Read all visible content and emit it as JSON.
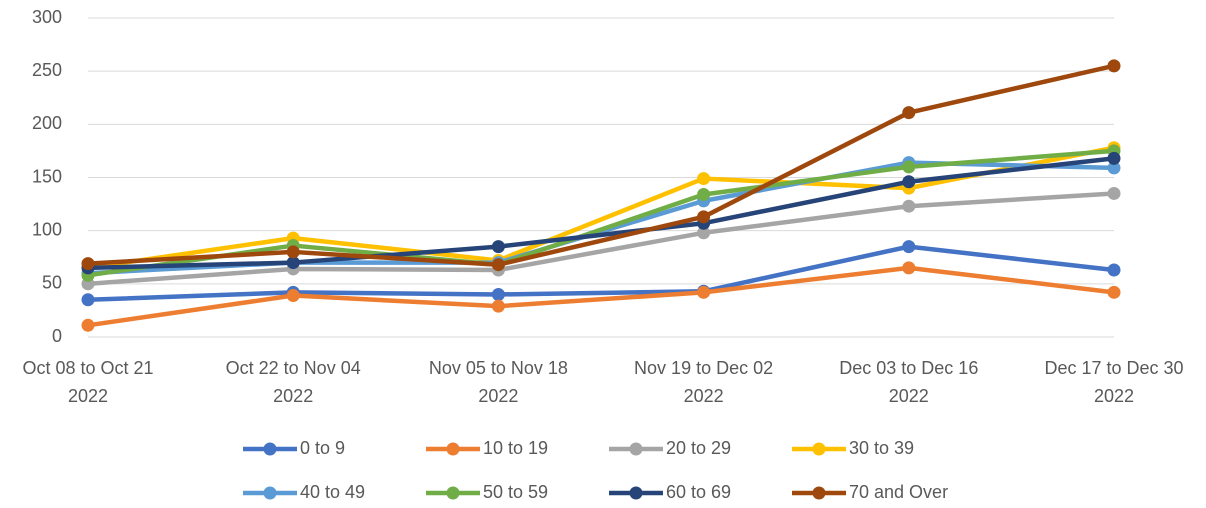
{
  "chart_data": {
    "type": "line",
    "categories": [
      "Oct 08 to Oct 21\n2022",
      "Oct 22 to Nov 04\n2022",
      "Nov 05 to Nov 18\n2022",
      "Nov 19 to Dec 02\n2022",
      "Dec 03 to Dec 16\n2022",
      "Dec 17 to Dec 30\n2022"
    ],
    "series": [
      {
        "name": "0 to 9",
        "color": "#4472c4",
        "values": [
          35,
          42,
          40,
          43,
          85,
          63
        ]
      },
      {
        "name": "10 to 19",
        "color": "#ed7d31",
        "values": [
          11,
          39,
          29,
          42,
          65,
          42
        ]
      },
      {
        "name": "20 to 29",
        "color": "#a5a5a5",
        "values": [
          50,
          64,
          63,
          98,
          123,
          135
        ]
      },
      {
        "name": "30 to 39",
        "color": "#ffc000",
        "values": [
          65,
          93,
          72,
          149,
          140,
          178
        ]
      },
      {
        "name": "40 to 49",
        "color": "#5b9bd5",
        "values": [
          60,
          70,
          70,
          128,
          164,
          159
        ]
      },
      {
        "name": "50 to 59",
        "color": "#70ad47",
        "values": [
          58,
          86,
          68,
          134,
          160,
          175
        ]
      },
      {
        "name": "60 to 69",
        "color": "#264478",
        "values": [
          65,
          70,
          85,
          107,
          146,
          168
        ]
      },
      {
        "name": "70 and Over",
        "color": "#9e480e",
        "values": [
          69,
          80,
          68,
          113,
          211,
          255
        ]
      }
    ],
    "ylim": [
      0,
      300
    ],
    "yticks": [
      0,
      50,
      100,
      150,
      200,
      250,
      300
    ],
    "grid": true,
    "legend": "bottom"
  }
}
